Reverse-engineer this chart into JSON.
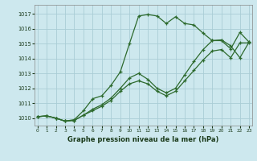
{
  "xlabel": "Graphe pression niveau de la mer (hPa)",
  "bg_color": "#cde8ee",
  "grid_color": "#aacdd6",
  "line_color": "#2d6a2d",
  "x_ticks": [
    0,
    1,
    2,
    3,
    4,
    5,
    6,
    7,
    8,
    9,
    10,
    11,
    12,
    13,
    14,
    15,
    16,
    17,
    18,
    19,
    20,
    21,
    22,
    23
  ],
  "y_ticks": [
    1010,
    1011,
    1012,
    1013,
    1014,
    1015,
    1016,
    1017
  ],
  "ylim": [
    1009.5,
    1017.6
  ],
  "xlim": [
    -0.3,
    23.3
  ],
  "series": [
    {
      "x": [
        0,
        1,
        2,
        3,
        4,
        5,
        6,
        7,
        8,
        9,
        10,
        11,
        12,
        13,
        14,
        15,
        16,
        17,
        18,
        19,
        20,
        21,
        22,
        23
      ],
      "y": [
        1010.1,
        1010.15,
        1010.0,
        1009.8,
        1009.85,
        1010.2,
        1010.5,
        1010.8,
        1011.2,
        1011.8,
        1012.3,
        1012.5,
        1012.3,
        1011.8,
        1011.5,
        1011.8,
        1012.5,
        1013.2,
        1013.9,
        1014.5,
        1014.6,
        1014.05,
        1015.05,
        1015.05
      ]
    },
    {
      "x": [
        0,
        1,
        2,
        3,
        4,
        5,
        6,
        7,
        8,
        9,
        10,
        11,
        12,
        13,
        14,
        15,
        16,
        17,
        18,
        19,
        20,
        21,
        22,
        23
      ],
      "y": [
        1010.1,
        1010.15,
        1010.0,
        1009.8,
        1009.85,
        1010.2,
        1010.6,
        1010.9,
        1011.35,
        1012.0,
        1012.7,
        1013.0,
        1012.6,
        1012.0,
        1011.7,
        1012.0,
        1012.9,
        1013.8,
        1014.6,
        1015.2,
        1015.2,
        1014.65,
        1015.75,
        1015.1
      ]
    },
    {
      "x": [
        0,
        1,
        2,
        3,
        4,
        5,
        6,
        7,
        8,
        9,
        10,
        11,
        12,
        13,
        14,
        15,
        16,
        17,
        18,
        19,
        20,
        21,
        22,
        23
      ],
      "y": [
        1010.1,
        1010.15,
        1010.0,
        1009.8,
        1009.9,
        1010.5,
        1011.3,
        1011.5,
        1012.2,
        1013.1,
        1015.0,
        1016.85,
        1016.95,
        1016.85,
        1016.35,
        1016.8,
        1016.35,
        1016.25,
        1015.7,
        1015.2,
        1015.25,
        1014.85,
        1014.05,
        1015.1
      ]
    }
  ]
}
